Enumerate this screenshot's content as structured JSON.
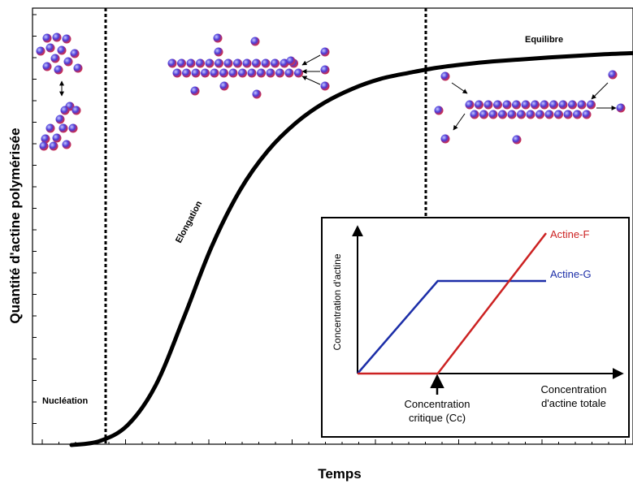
{
  "chart_data": [
    {
      "type": "line",
      "xlabel": "Temps",
      "ylabel": "Quantité d'actine polymérisée",
      "annotations": {
        "nucleation": "Nucléation",
        "elongation": "Elongation",
        "equilibrium": "Equilibre"
      },
      "grid": false,
      "legend": "none",
      "series": [
        {
          "color": "#000000",
          "shape": "sigmoid",
          "x": [
            0,
            0.05,
            0.1,
            0.15,
            0.2,
            0.25,
            0.3,
            0.35,
            0.4,
            0.45,
            0.5,
            0.55,
            0.6,
            0.65,
            0.7,
            0.75,
            0.8,
            0.85,
            0.9,
            0.95,
            1.0
          ],
          "y": [
            0,
            0.01,
            0.05,
            0.15,
            0.32,
            0.5,
            0.64,
            0.74,
            0.81,
            0.86,
            0.895,
            0.92,
            0.935,
            0.948,
            0.957,
            0.964,
            0.969,
            0.974,
            0.978,
            0.982,
            0.985
          ]
        }
      ],
      "phase_boundaries": [
        0.05,
        0.67
      ]
    },
    {
      "type": "line",
      "xlabel": "Concentration d'actine totale",
      "ylabel": "Concentration  d'actine",
      "annotation": "Concentration critique (Cc)",
      "grid": false,
      "legend": "right",
      "series": [
        {
          "name": "Actine-F",
          "color": "#cc2222",
          "x": [
            0,
            0.4,
            0.94
          ],
          "y": [
            0,
            0,
            0.91
          ]
        },
        {
          "name": "Actine-G",
          "color": "#1c2ea8",
          "x": [
            0,
            0.4,
            0.94
          ],
          "y": [
            0,
            0.6,
            0.6
          ]
        }
      ]
    }
  ],
  "colors": {
    "curve": "#000000",
    "actin_f": "#cc2222",
    "actin_g": "#1c2ea8",
    "monomer_blue": "#3a3ad8",
    "monomer_red": "#d83a4a"
  }
}
